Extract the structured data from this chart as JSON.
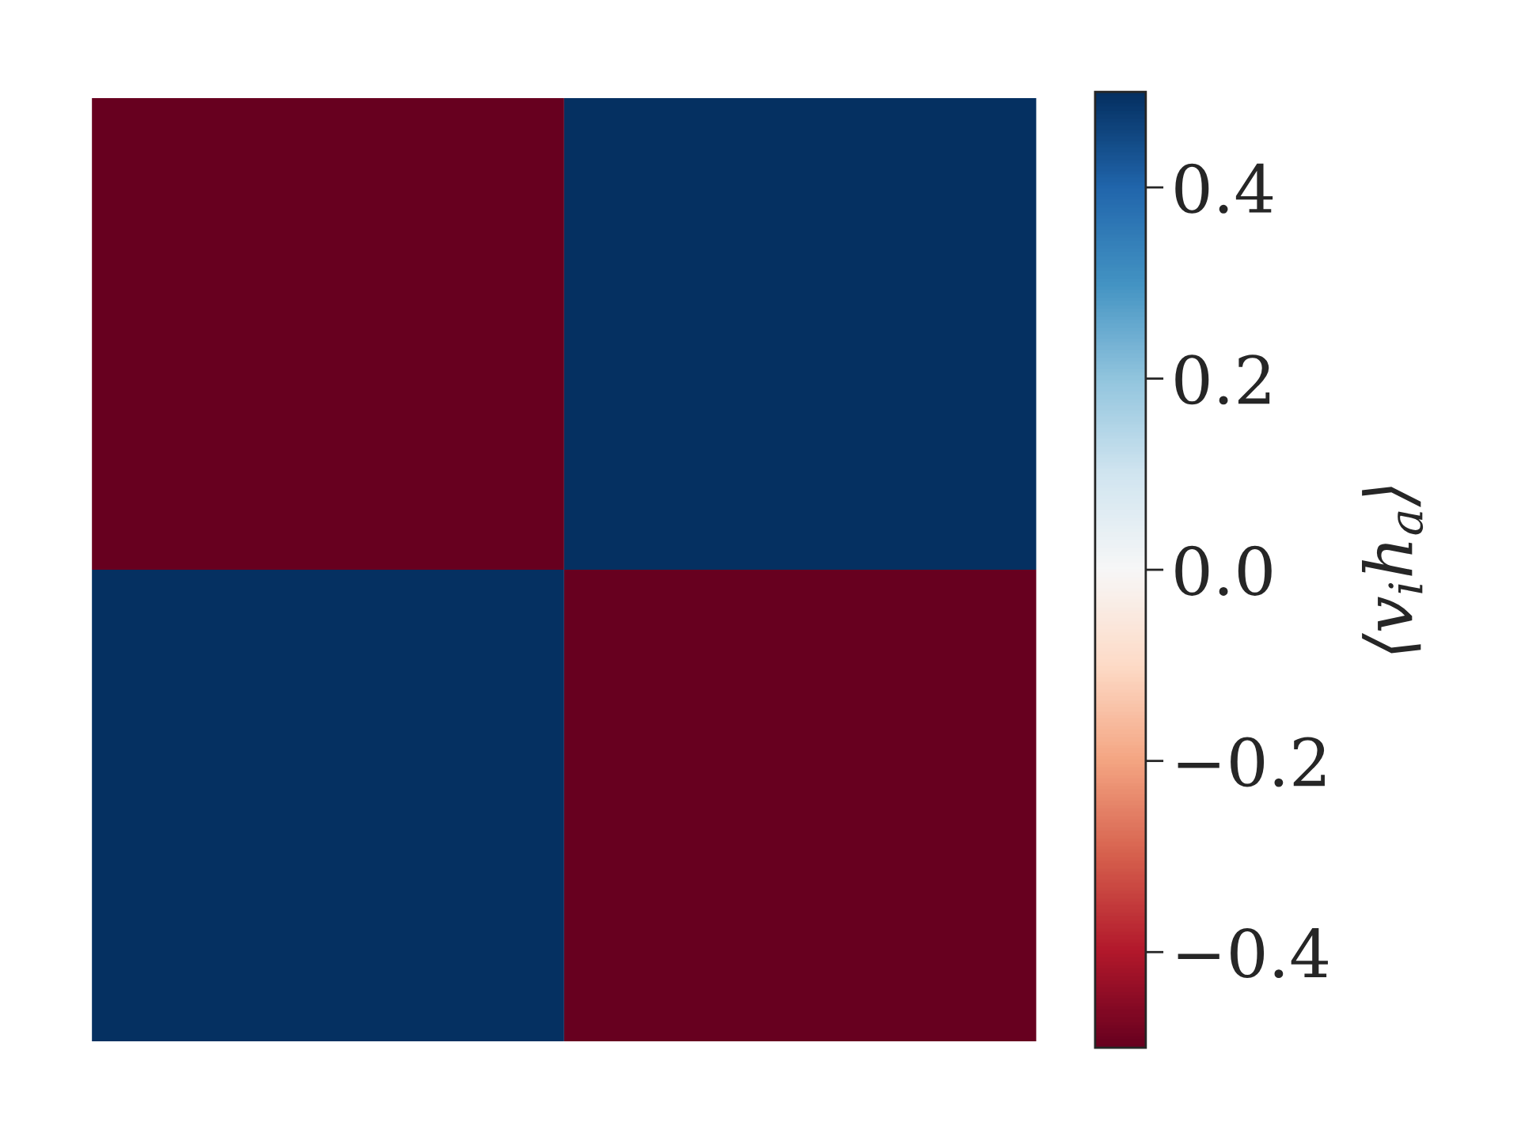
{
  "chart_data": {
    "type": "heatmap",
    "categories": [
      null,
      null
    ],
    "y_categories": [
      null,
      null
    ],
    "cells": [
      [
        -0.5,
        0.5
      ],
      [
        0.5,
        -0.5
      ]
    ],
    "clim": [
      -0.5,
      0.5
    ],
    "cticks": [
      {
        "value": -0.4,
        "label": "−0.4"
      },
      {
        "value": -0.2,
        "label": "−0.2"
      },
      {
        "value": 0,
        "label": "0.0"
      },
      0.2,
      0.4
    ],
    "clabel": "⟨v$_{i}$h$_{a}$⟩",
    "tick_labels": false
  }
}
